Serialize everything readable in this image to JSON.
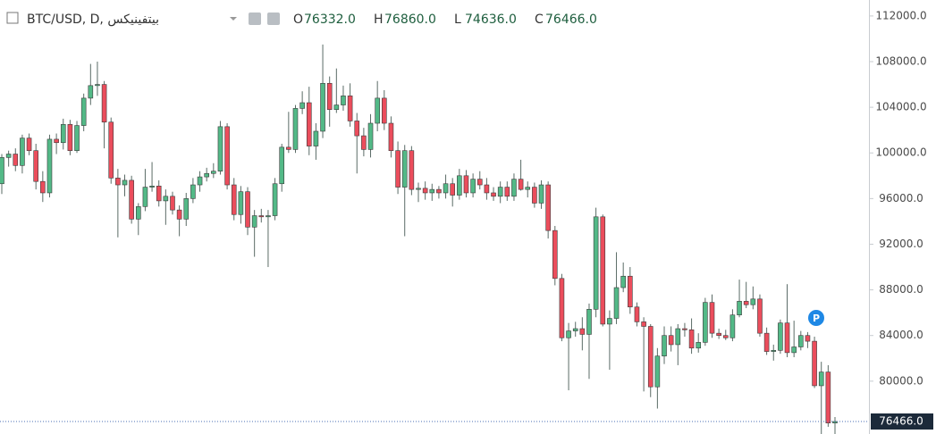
{
  "header": {
    "symbol": "BTC/USD, D, بيتفينيكس",
    "ohlc": [
      {
        "key": "O",
        "value": "76332.0"
      },
      {
        "key": "H",
        "value": "76860.0"
      },
      {
        "key": "L",
        "value": "74636.0"
      },
      {
        "key": "C",
        "value": "76466.0"
      }
    ],
    "marker_label": "P"
  },
  "chart_data": {
    "type": "candlestick",
    "up_color": "#53b987",
    "down_color": "#eb4d5c",
    "wick_color": "#5a6b66",
    "ylim": [
      75370,
      113400
    ],
    "yticks": [
      {
        "value": 80000,
        "label": "80000.0"
      },
      {
        "value": 84000,
        "label": "84000.0"
      },
      {
        "value": 88000,
        "label": "88000.0"
      },
      {
        "value": 92000,
        "label": "92000.0"
      },
      {
        "value": 96000,
        "label": "96000.0"
      },
      {
        "value": 100000,
        "label": "100000.0"
      },
      {
        "value": 104000,
        "label": "104000.0"
      },
      {
        "value": 108000,
        "label": "108000.0"
      },
      {
        "value": 112000,
        "label": "112000.0"
      }
    ],
    "grid": false,
    "last_price": 76466,
    "last_price_label": "76466.0",
    "ohlc": [
      [
        97300,
        99900,
        96400,
        99600
      ],
      [
        99600,
        100200,
        98800,
        99900
      ],
      [
        99900,
        100400,
        98400,
        98900
      ],
      [
        98900,
        101600,
        98200,
        101300
      ],
      [
        101300,
        101700,
        99800,
        100200
      ],
      [
        100200,
        100800,
        96800,
        97500
      ],
      [
        97500,
        98400,
        95700,
        96500
      ],
      [
        96500,
        101600,
        96100,
        101200
      ],
      [
        101200,
        101700,
        99900,
        100900
      ],
      [
        100900,
        103000,
        100300,
        102500
      ],
      [
        102500,
        102900,
        99800,
        100200
      ],
      [
        100200,
        102800,
        100000,
        102400
      ],
      [
        102400,
        105200,
        101900,
        104800
      ],
      [
        104800,
        107800,
        104200,
        105900
      ],
      [
        105900,
        108000,
        105000,
        106000
      ],
      [
        106000,
        106300,
        100400,
        102700
      ],
      [
        102700,
        103100,
        97300,
        97800
      ],
      [
        97800,
        98600,
        92600,
        97200
      ],
      [
        97200,
        98100,
        96200,
        97600
      ],
      [
        97600,
        98000,
        93800,
        94200
      ],
      [
        94200,
        95600,
        92800,
        95300
      ],
      [
        95300,
        98600,
        94900,
        97000
      ],
      [
        97000,
        99200,
        96600,
        97100
      ],
      [
        97100,
        97600,
        95300,
        95800
      ],
      [
        95800,
        96800,
        93700,
        96200
      ],
      [
        96200,
        96600,
        94600,
        95000
      ],
      [
        95000,
        95400,
        92700,
        94200
      ],
      [
        94200,
        96500,
        93600,
        96000
      ],
      [
        96000,
        97800,
        95600,
        97200
      ],
      [
        97200,
        98400,
        96600,
        97900
      ],
      [
        97900,
        98700,
        97500,
        98200
      ],
      [
        98200,
        99100,
        97800,
        98400
      ],
      [
        98400,
        102800,
        98100,
        102300
      ],
      [
        102300,
        102600,
        96800,
        97200
      ],
      [
        97200,
        97800,
        94100,
        94600
      ],
      [
        94600,
        97100,
        93800,
        96600
      ],
      [
        96600,
        97000,
        92800,
        93500
      ],
      [
        93500,
        95000,
        90900,
        94500
      ],
      [
        94500,
        95100,
        93900,
        94400
      ],
      [
        94400,
        95000,
        90000,
        94500
      ],
      [
        94500,
        97800,
        94100,
        97300
      ],
      [
        97300,
        100800,
        96600,
        100500
      ],
      [
        100500,
        103600,
        100000,
        100300
      ],
      [
        100300,
        104200,
        100000,
        103900
      ],
      [
        103900,
        105400,
        103400,
        104400
      ],
      [
        104400,
        105800,
        99800,
        100600
      ],
      [
        100600,
        102600,
        99400,
        101900
      ],
      [
        101900,
        109500,
        101300,
        106100
      ],
      [
        106100,
        106700,
        102300,
        103800
      ],
      [
        103800,
        107400,
        103500,
        104200
      ],
      [
        104200,
        105900,
        103700,
        105000
      ],
      [
        105000,
        106100,
        102300,
        102800
      ],
      [
        102800,
        103500,
        98200,
        101500
      ],
      [
        101500,
        102200,
        99700,
        100300
      ],
      [
        100300,
        103400,
        99600,
        102600
      ],
      [
        102600,
        106300,
        101900,
        104800
      ],
      [
        104800,
        105500,
        102000,
        102600
      ],
      [
        102600,
        103200,
        99600,
        100200
      ],
      [
        100200,
        101000,
        96400,
        97000
      ],
      [
        97000,
        100700,
        92700,
        100200
      ],
      [
        100200,
        100600,
        96300,
        96800
      ],
      [
        96800,
        97400,
        95700,
        96900
      ],
      [
        96900,
        97500,
        95900,
        96500
      ],
      [
        96500,
        97300,
        95800,
        96800
      ],
      [
        96800,
        97100,
        96000,
        96500
      ],
      [
        96500,
        98100,
        96000,
        97300
      ],
      [
        97300,
        97800,
        95300,
        96300
      ],
      [
        96300,
        98600,
        95900,
        98000
      ],
      [
        98000,
        98500,
        96100,
        96500
      ],
      [
        96500,
        98200,
        96100,
        97700
      ],
      [
        97700,
        98400,
        96800,
        97200
      ],
      [
        97200,
        97800,
        95900,
        96500
      ],
      [
        96500,
        97000,
        95800,
        96200
      ],
      [
        96200,
        97500,
        95600,
        97000
      ],
      [
        97000,
        97500,
        95800,
        96200
      ],
      [
        96200,
        98200,
        95800,
        97700
      ],
      [
        97700,
        99400,
        96700,
        96800
      ],
      [
        96800,
        97500,
        96100,
        97000
      ],
      [
        97000,
        97400,
        95200,
        95600
      ],
      [
        95600,
        97600,
        95100,
        97200
      ],
      [
        97200,
        97500,
        92500,
        93200
      ],
      [
        93200,
        93600,
        88400,
        89000
      ],
      [
        89000,
        89400,
        83500,
        83800
      ],
      [
        83800,
        85100,
        79200,
        84400
      ],
      [
        84400,
        85200,
        83900,
        84600
      ],
      [
        84600,
        85600,
        82700,
        84100
      ],
      [
        84100,
        86800,
        80200,
        86300
      ],
      [
        86300,
        95200,
        85600,
        94400
      ],
      [
        94400,
        94600,
        84800,
        85000
      ],
      [
        85000,
        86200,
        81000,
        85500
      ],
      [
        85500,
        91300,
        85000,
        88200
      ],
      [
        88200,
        90400,
        87800,
        89200
      ],
      [
        89200,
        90000,
        85900,
        86500
      ],
      [
        86500,
        86900,
        84800,
        85200
      ],
      [
        85200,
        85600,
        79100,
        84800
      ],
      [
        84800,
        85000,
        78600,
        79500
      ],
      [
        79500,
        82900,
        77600,
        82200
      ],
      [
        82200,
        84800,
        81500,
        84000
      ],
      [
        84000,
        84800,
        82600,
        83200
      ],
      [
        83200,
        85000,
        81400,
        84600
      ],
      [
        84600,
        85100,
        83900,
        84500
      ],
      [
        84500,
        85500,
        82400,
        82900
      ],
      [
        82900,
        84200,
        82500,
        83400
      ],
      [
        83400,
        87300,
        83100,
        86900
      ],
      [
        86900,
        87600,
        83800,
        84200
      ],
      [
        84200,
        84600,
        83700,
        84000
      ],
      [
        84000,
        84500,
        83600,
        83800
      ],
      [
        83800,
        86300,
        83500,
        85800
      ],
      [
        85800,
        88900,
        85600,
        87000
      ],
      [
        87000,
        88700,
        86400,
        86700
      ],
      [
        86700,
        88300,
        86300,
        87200
      ],
      [
        87200,
        87600,
        83900,
        84200
      ],
      [
        84200,
        84700,
        82300,
        82600
      ],
      [
        82600,
        83200,
        81800,
        82700
      ],
      [
        82700,
        85400,
        82400,
        85100
      ],
      [
        85100,
        88500,
        82100,
        82500
      ],
      [
        82500,
        85300,
        82100,
        83000
      ],
      [
        83000,
        84400,
        82700,
        84000
      ],
      [
        84000,
        84300,
        82900,
        83500
      ],
      [
        83500,
        83900,
        79400,
        79600
      ],
      [
        79600,
        81700,
        74900,
        80800
      ],
      [
        80800,
        81400,
        76000,
        76332
      ],
      [
        76332,
        76860,
        74636,
        76466
      ]
    ]
  }
}
